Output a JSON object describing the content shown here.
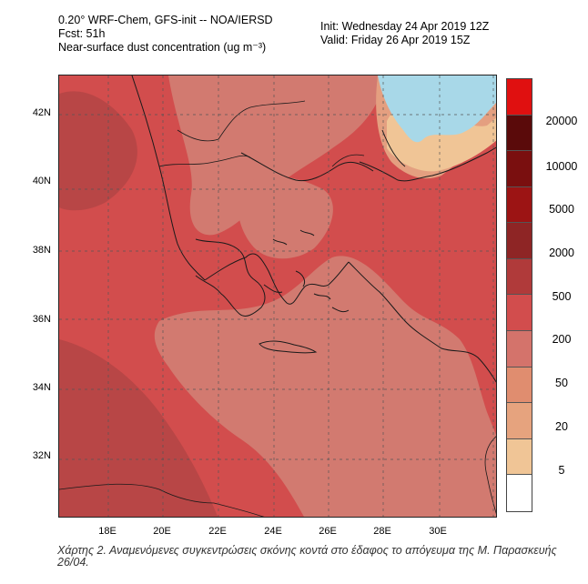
{
  "header": {
    "line1": "0.20° WRF-Chem, GFS-init -- NOA/IERSD",
    "line2": "Fcst: 51h",
    "line3": "Near-surface dust concentration (ug m⁻³)",
    "init": "Init: Wednesday 24 Apr 2019  12Z",
    "valid": "Valid: Friday 26 Apr 2019  15Z"
  },
  "axes": {
    "y_ticks": [
      "42N",
      "40N",
      "38N",
      "36N",
      "34N",
      "32N"
    ],
    "x_ticks": [
      "18E",
      "20E",
      "22E",
      "24E",
      "26E",
      "28E",
      "30E"
    ]
  },
  "colorbar": {
    "colors": [
      "#e01010",
      "#5a0a0a",
      "#7a0f0f",
      "#9c1414",
      "#8e2525",
      "#b03a3a",
      "#d24d4d",
      "#d4736b",
      "#e08d6f",
      "#e6a37e",
      "#f0c596",
      "#ffffff"
    ],
    "labels": [
      "20000",
      "10000",
      "5000",
      "2000",
      "500",
      "200",
      "50",
      "20",
      "5"
    ]
  },
  "map": {
    "colors": {
      "high": "#b84646",
      "mid": "#d24d4d",
      "low": "#d27a70",
      "lower": "#e49f80",
      "lowest": "#f0c596",
      "sea": "#a8d8e8",
      "coast": "#1a1a1a",
      "grid": "#555555"
    }
  },
  "caption": "Χάρτης 2. Αναμενόμενες συγκεντρώσεις σκόνης κοντά στο έδαφος το απόγευμα της Μ. Παρασκευής 26/04."
}
